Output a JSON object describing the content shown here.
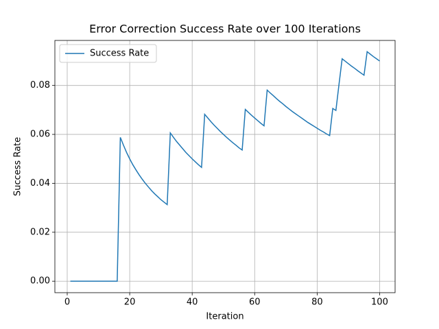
{
  "chart_data": {
    "type": "line",
    "title": "Error Correction Success Rate over 100 Iterations",
    "x_label": "Iteration",
    "y_label": "Success Rate",
    "x": [
      1,
      2,
      3,
      4,
      5,
      6,
      7,
      8,
      9,
      10,
      11,
      12,
      13,
      14,
      15,
      16,
      17,
      18,
      19,
      20,
      21,
      22,
      23,
      24,
      25,
      26,
      27,
      28,
      29,
      30,
      31,
      32,
      33,
      34,
      35,
      36,
      37,
      38,
      39,
      40,
      41,
      42,
      43,
      44,
      45,
      46,
      47,
      48,
      49,
      50,
      51,
      52,
      53,
      54,
      55,
      56,
      57,
      58,
      59,
      60,
      61,
      62,
      63,
      64,
      65,
      66,
      67,
      68,
      69,
      70,
      71,
      72,
      73,
      74,
      75,
      76,
      77,
      78,
      79,
      80,
      81,
      82,
      83,
      84,
      85,
      86,
      87,
      88,
      89,
      90,
      91,
      92,
      93,
      94,
      95,
      96,
      97,
      98,
      99,
      100
    ],
    "series": [
      {
        "name": "Success Rate",
        "color": "#1f77b4",
        "values": [
          0,
          0,
          0,
          0,
          0,
          0,
          0,
          0,
          0,
          0,
          0,
          0,
          0,
          0,
          0,
          0,
          0.0588,
          0.0556,
          0.0526,
          0.05,
          0.0476,
          0.0455,
          0.0435,
          0.0417,
          0.04,
          0.0385,
          0.037,
          0.0357,
          0.0345,
          0.0333,
          0.0323,
          0.0313,
          0.0606,
          0.0588,
          0.0571,
          0.0556,
          0.0541,
          0.0526,
          0.0513,
          0.05,
          0.0488,
          0.0476,
          0.0465,
          0.0682,
          0.0667,
          0.0652,
          0.0638,
          0.0625,
          0.0612,
          0.06,
          0.0588,
          0.0577,
          0.0566,
          0.0556,
          0.0545,
          0.0536,
          0.0702,
          0.069,
          0.0678,
          0.0667,
          0.0656,
          0.0645,
          0.0635,
          0.0781,
          0.0769,
          0.0758,
          0.0746,
          0.0735,
          0.0725,
          0.0714,
          0.0704,
          0.0694,
          0.0685,
          0.0676,
          0.0667,
          0.0658,
          0.0649,
          0.0641,
          0.0633,
          0.0625,
          0.0617,
          0.061,
          0.0602,
          0.0595,
          0.0706,
          0.0698,
          0.0805,
          0.0909,
          0.0899,
          0.0889,
          0.0879,
          0.087,
          0.086,
          0.0851,
          0.0842,
          0.0938,
          0.0928,
          0.0918,
          0.0909,
          0.09
        ]
      }
    ],
    "xlim": [
      -3.95,
      104.95
    ],
    "xticks": [
      0,
      20,
      40,
      60,
      80,
      100
    ],
    "ylim": [
      -0.0047,
      0.0984
    ],
    "yticks": [
      {
        "value": 0,
        "label": "0.00"
      },
      {
        "value": 0.02,
        "label": "0.02"
      },
      {
        "value": 0.04,
        "label": "0.04"
      },
      {
        "value": 0.06,
        "label": "0.06"
      },
      {
        "value": 0.08,
        "label": "0.08"
      }
    ],
    "grid": true,
    "legend": "upper-left"
  }
}
